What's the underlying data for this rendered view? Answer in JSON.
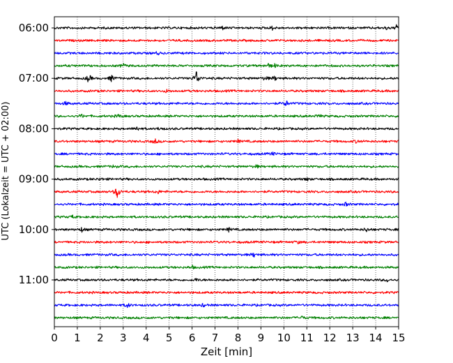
{
  "chart_data": {
    "type": "line",
    "title": "",
    "xlabel": "Zeit  [min]",
    "ylabel": "UTC (Lokalzeit = UTC + 02:00)",
    "xlim": [
      0,
      15
    ],
    "x_ticks": [
      "0",
      "1",
      "2",
      "3",
      "4",
      "5",
      "6",
      "7",
      "8",
      "9",
      "10",
      "11",
      "12",
      "13",
      "14",
      "15"
    ],
    "y_ticks": [
      "06:00",
      "07:00",
      "08:00",
      "09:00",
      "10:00",
      "11:00"
    ],
    "trace_interval_min": 15,
    "grid": "vertical dotted lines at each minute",
    "color_cycle": [
      "#000000",
      "#ff0000",
      "#0000ff",
      "#008000"
    ],
    "traces": [
      {
        "start": "06:00",
        "color": "#000000",
        "events": [
          [
            7.3,
            3
          ],
          [
            9.5,
            2.5
          ],
          [
            14.5,
            2.5
          ],
          [
            14.9,
            3
          ]
        ]
      },
      {
        "start": "06:15",
        "color": "#ff0000",
        "events": []
      },
      {
        "start": "06:30",
        "color": "#0000ff",
        "events": [
          [
            4.5,
            2
          ]
        ]
      },
      {
        "start": "06:45",
        "color": "#008000",
        "events": [
          [
            3.0,
            3
          ],
          [
            9.3,
            3
          ],
          [
            9.6,
            2.5
          ]
        ]
      },
      {
        "start": "07:00",
        "color": "#000000",
        "events": [
          [
            1.5,
            6
          ],
          [
            2.5,
            5
          ],
          [
            6.2,
            12
          ],
          [
            9.2,
            3
          ],
          [
            9.6,
            3
          ]
        ]
      },
      {
        "start": "07:15",
        "color": "#ff0000",
        "events": [
          [
            4.9,
            2
          ]
        ]
      },
      {
        "start": "07:30",
        "color": "#0000ff",
        "events": [
          [
            0.5,
            2.5
          ],
          [
            10.1,
            4
          ]
        ]
      },
      {
        "start": "07:45",
        "color": "#008000",
        "events": [
          [
            1.2,
            2
          ],
          [
            2.8,
            2.5
          ],
          [
            11.5,
            2.5
          ]
        ]
      },
      {
        "start": "08:00",
        "color": "#000000",
        "events": [
          [
            3.6,
            3
          ],
          [
            4.6,
            2.5
          ]
        ]
      },
      {
        "start": "08:15",
        "color": "#ff0000",
        "events": [
          [
            4.4,
            3
          ],
          [
            8.0,
            2
          ],
          [
            13.2,
            2.5
          ]
        ]
      },
      {
        "start": "08:30",
        "color": "#0000ff",
        "events": [
          [
            9.5,
            2
          ]
        ]
      },
      {
        "start": "08:45",
        "color": "#008000",
        "events": [
          [
            2.6,
            2
          ],
          [
            8.8,
            2
          ]
        ]
      },
      {
        "start": "09:00",
        "color": "#000000",
        "events": [
          [
            2.0,
            2
          ],
          [
            11.0,
            2
          ]
        ]
      },
      {
        "start": "09:15",
        "color": "#ff0000",
        "events": [
          [
            2.75,
            10
          ],
          [
            4.5,
            2.5
          ]
        ]
      },
      {
        "start": "09:30",
        "color": "#0000ff",
        "events": [
          [
            12.7,
            2.5
          ]
        ]
      },
      {
        "start": "09:45",
        "color": "#008000",
        "events": [
          [
            0.8,
            2
          ]
        ]
      },
      {
        "start": "10:00",
        "color": "#000000",
        "events": [
          [
            1.2,
            3
          ],
          [
            7.6,
            2.5
          ],
          [
            13.6,
            2.5
          ]
        ]
      },
      {
        "start": "10:15",
        "color": "#ff0000",
        "events": [
          [
            10.6,
            2
          ]
        ]
      },
      {
        "start": "10:30",
        "color": "#0000ff",
        "events": [
          [
            8.7,
            3
          ]
        ]
      },
      {
        "start": "10:45",
        "color": "#008000",
        "events": [
          [
            6.0,
            2
          ]
        ]
      },
      {
        "start": "11:00",
        "color": "#000000",
        "events": [
          [
            6.2,
            2
          ],
          [
            14.5,
            2
          ]
        ]
      },
      {
        "start": "11:15",
        "color": "#ff0000",
        "events": []
      },
      {
        "start": "11:30",
        "color": "#0000ff",
        "events": [
          [
            3.2,
            3.5
          ],
          [
            6.5,
            2
          ]
        ]
      },
      {
        "start": "11:45",
        "color": "#008000",
        "events": [
          [
            10.8,
            2
          ]
        ]
      }
    ]
  }
}
